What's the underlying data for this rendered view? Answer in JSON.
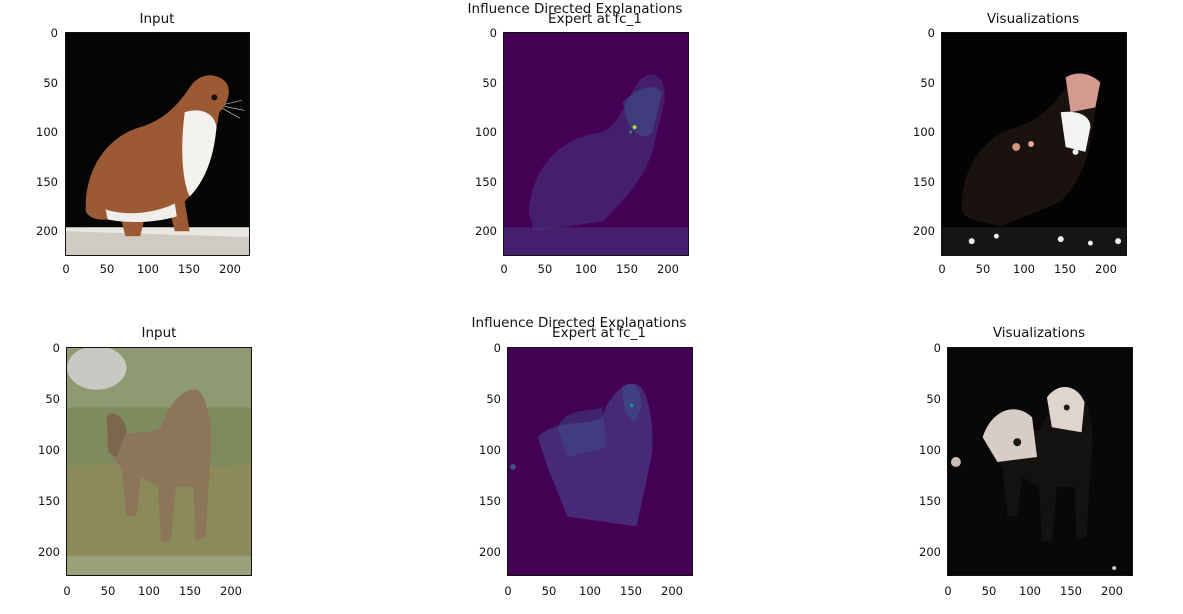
{
  "rows": [
    {
      "suptitle": "Influence Directed Explanations",
      "panels": [
        {
          "title": "Input",
          "y_ticks": [
            "0",
            "50",
            "100",
            "150",
            "200"
          ],
          "x_ticks": [
            "0",
            "50",
            "100",
            "150",
            "200"
          ]
        },
        {
          "title": "Expert at fc_1",
          "y_ticks": [
            "0",
            "50",
            "100",
            "150",
            "200"
          ],
          "x_ticks": [
            "0",
            "50",
            "100",
            "150",
            "200"
          ]
        },
        {
          "title": "Visualizations",
          "y_ticks": [
            "0",
            "50",
            "100",
            "150",
            "200"
          ],
          "x_ticks": [
            "0",
            "50",
            "100",
            "150",
            "200"
          ]
        }
      ]
    },
    {
      "suptitle": "Influence Directed Explanations",
      "panels": [
        {
          "title": "Input",
          "y_ticks": [
            "0",
            "50",
            "100",
            "150",
            "200"
          ],
          "x_ticks": [
            "0",
            "50",
            "100",
            "150",
            "200"
          ]
        },
        {
          "title": "Expert at fc_1",
          "y_ticks": [
            "0",
            "50",
            "100",
            "150",
            "200"
          ],
          "x_ticks": [
            "0",
            "50",
            "100",
            "150",
            "200"
          ]
        },
        {
          "title": "Visualizations",
          "y_ticks": [
            "0",
            "50",
            "100",
            "150",
            "200"
          ],
          "x_ticks": [
            "0",
            "50",
            "100",
            "150",
            "200"
          ]
        }
      ]
    }
  ],
  "colors": {
    "heatmap_bg": "#440154",
    "heatmap_mid": "#3b528b",
    "heatmap_hi": "#21918c",
    "heatmap_peak": "#b5de2b"
  }
}
